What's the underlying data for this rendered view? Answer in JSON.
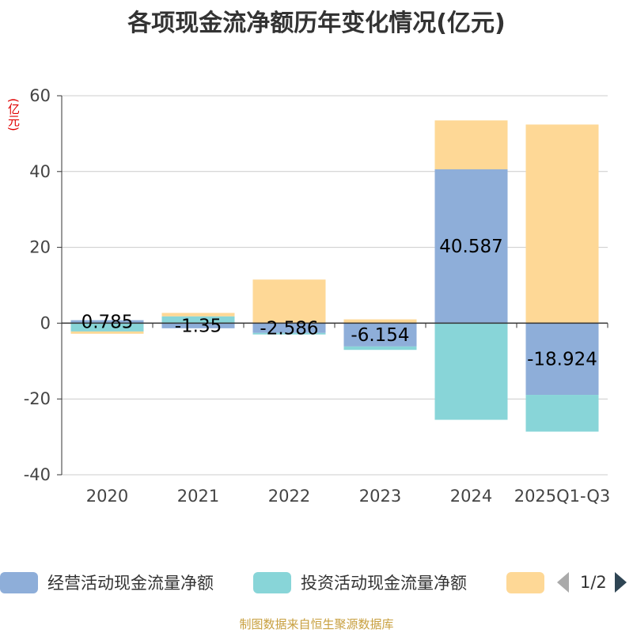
{
  "chart_data": {
    "type": "bar",
    "stacked": true,
    "title": "各项现金流净额历年变化情况(亿元)",
    "ylabel": "(亿元)",
    "ylim": [
      -40,
      60
    ],
    "yticks": [
      -40,
      -20,
      0,
      20,
      40,
      60
    ],
    "categories": [
      "2020",
      "2021",
      "2022",
      "2023",
      "2024",
      "2025Q1-Q3"
    ],
    "series": [
      {
        "name": "经营活动现金流量净额",
        "color": "#8eaed9",
        "values": [
          0.785,
          -1.35,
          -2.586,
          -6.154,
          40.587,
          -18.924
        ],
        "labels": [
          "0.785",
          "-1.35",
          "-2.586",
          "-6.154",
          "40.587",
          "-18.924"
        ]
      },
      {
        "name": "投资活动现金流量净额",
        "color": "#88d5d8",
        "values": [
          -2.2,
          1.8,
          -0.4,
          -0.9,
          -25.5,
          -9.7
        ]
      },
      {
        "name": "",
        "color": "#fed896",
        "values": [
          -0.6,
          0.9,
          11.5,
          1.0,
          12.9,
          52.4
        ]
      }
    ],
    "legend_position": "bottom"
  },
  "legend": {
    "items": [
      "经营活动现金流量净额",
      "投资活动现金流量净额"
    ],
    "page": "1/2"
  },
  "source": "制图数据来自恒生聚源数据库"
}
